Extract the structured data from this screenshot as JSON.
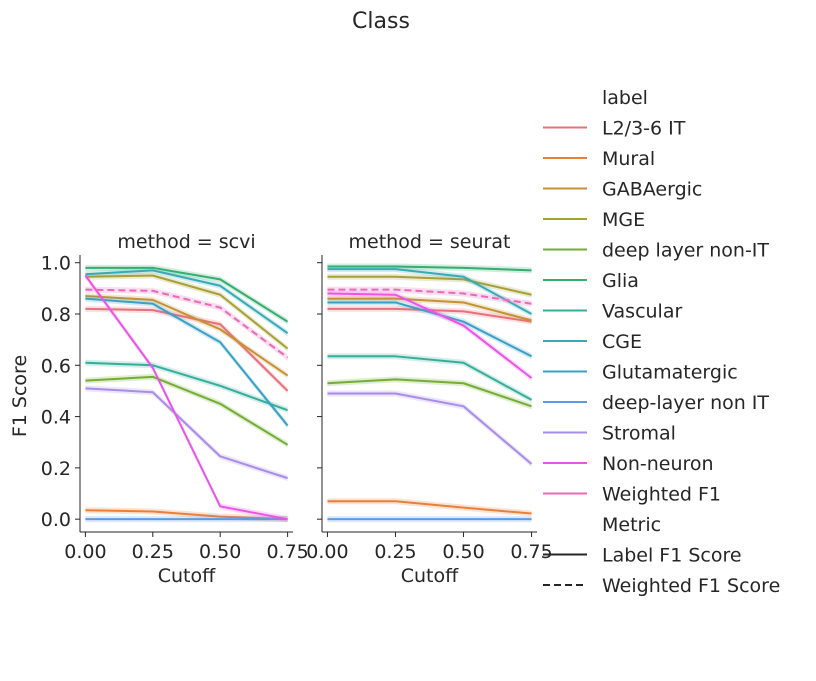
{
  "chart_data": {
    "type": "line",
    "title": "Class",
    "xlabel": "Cutoff",
    "ylabel": "F1 Score",
    "x": [
      0.0,
      0.25,
      0.5,
      0.75
    ],
    "xticks": [
      "0.00",
      "0.25",
      "0.50",
      "0.75"
    ],
    "yticks": [
      "0.0",
      "0.2",
      "0.4",
      "0.6",
      "0.8",
      "1.0"
    ],
    "xlim": [
      -0.02,
      0.77
    ],
    "ylim": [
      -0.05,
      1.03
    ],
    "panels": [
      {
        "title": "method = scvi",
        "series": [
          {
            "name": "L2/3-6 IT",
            "color": "#e8707a",
            "style": "solid",
            "values": [
              0.82,
              0.815,
              0.76,
              0.5
            ]
          },
          {
            "name": "Mural",
            "color": "#ea7f3a",
            "style": "solid",
            "values": [
              0.035,
              0.03,
              0.01,
              0.0
            ]
          },
          {
            "name": "GABAergic",
            "color": "#c69035",
            "style": "solid",
            "values": [
              0.87,
              0.855,
              0.74,
              0.56
            ]
          },
          {
            "name": "MGE",
            "color": "#a6a035",
            "style": "solid",
            "values": [
              0.945,
              0.95,
              0.875,
              0.665
            ]
          },
          {
            "name": "deep layer non-IT",
            "color": "#74ad33",
            "style": "solid",
            "values": [
              0.54,
              0.555,
              0.45,
              0.29
            ]
          },
          {
            "name": "Glia",
            "color": "#34ad6d",
            "style": "solid",
            "values": [
              0.98,
              0.98,
              0.935,
              0.77
            ]
          },
          {
            "name": "Vascular",
            "color": "#36ad9b",
            "style": "solid",
            "values": [
              0.61,
              0.6,
              0.52,
              0.425
            ]
          },
          {
            "name": "CGE",
            "color": "#37aab3",
            "style": "solid",
            "values": [
              0.955,
              0.97,
              0.91,
              0.725
            ]
          },
          {
            "name": "Glutamatergic",
            "color": "#39a1c4",
            "style": "solid",
            "values": [
              0.86,
              0.84,
              0.69,
              0.365
            ]
          },
          {
            "name": "deep-layer non IT",
            "color": "#5b9be8",
            "style": "solid",
            "values": [
              0.0,
              0.0,
              0.0,
              0.0
            ]
          },
          {
            "name": "Stromal",
            "color": "#a98ce8",
            "style": "solid",
            "values": [
              0.51,
              0.495,
              0.245,
              0.16
            ]
          },
          {
            "name": "Non-neuron",
            "color": "#ea55e8",
            "style": "solid",
            "values": [
              0.95,
              0.59,
              0.05,
              0.0
            ]
          },
          {
            "name": "Weighted F1",
            "color": "#ea6ab8",
            "style": "dashed",
            "values": [
              0.895,
              0.89,
              0.825,
              0.63
            ]
          }
        ]
      },
      {
        "title": "method = seurat",
        "series": [
          {
            "name": "L2/3-6 IT",
            "color": "#e8707a",
            "style": "solid",
            "values": [
              0.82,
              0.82,
              0.81,
              0.77
            ]
          },
          {
            "name": "Mural",
            "color": "#ea7f3a",
            "style": "solid",
            "values": [
              0.07,
              0.07,
              0.045,
              0.022
            ]
          },
          {
            "name": "GABAergic",
            "color": "#c69035",
            "style": "solid",
            "values": [
              0.86,
              0.86,
              0.845,
              0.775
            ]
          },
          {
            "name": "MGE",
            "color": "#a6a035",
            "style": "solid",
            "values": [
              0.945,
              0.945,
              0.935,
              0.875
            ]
          },
          {
            "name": "deep layer non-IT",
            "color": "#74ad33",
            "style": "solid",
            "values": [
              0.53,
              0.545,
              0.53,
              0.44
            ]
          },
          {
            "name": "Glia",
            "color": "#34ad6d",
            "style": "solid",
            "values": [
              0.985,
              0.985,
              0.98,
              0.97
            ]
          },
          {
            "name": "Vascular",
            "color": "#36ad9b",
            "style": "solid",
            "values": [
              0.635,
              0.635,
              0.61,
              0.465
            ]
          },
          {
            "name": "CGE",
            "color": "#37aab3",
            "style": "solid",
            "values": [
              0.975,
              0.975,
              0.945,
              0.8
            ]
          },
          {
            "name": "Glutamatergic",
            "color": "#39a1c4",
            "style": "solid",
            "values": [
              0.845,
              0.845,
              0.77,
              0.635
            ]
          },
          {
            "name": "deep-layer non IT",
            "color": "#5b9be8",
            "style": "solid",
            "values": [
              0.0,
              0.0,
              0.0,
              0.0
            ]
          },
          {
            "name": "Stromal",
            "color": "#a98ce8",
            "style": "solid",
            "values": [
              0.49,
              0.49,
              0.44,
              0.215
            ]
          },
          {
            "name": "Non-neuron",
            "color": "#ea55e8",
            "style": "solid",
            "values": [
              0.88,
              0.875,
              0.755,
              0.55
            ]
          },
          {
            "name": "Weighted F1",
            "color": "#ea6ab8",
            "style": "dashed",
            "values": [
              0.895,
              0.895,
              0.88,
              0.84
            ]
          }
        ]
      }
    ],
    "legend": {
      "placement": "right",
      "label_title": "label",
      "metric_title": "Metric",
      "labels": [
        {
          "name": "L2/3-6 IT",
          "color": "#e8707a"
        },
        {
          "name": "Mural",
          "color": "#ea7f3a"
        },
        {
          "name": "GABAergic",
          "color": "#c69035"
        },
        {
          "name": "MGE",
          "color": "#a6a035"
        },
        {
          "name": "deep layer non-IT",
          "color": "#74ad33"
        },
        {
          "name": "Glia",
          "color": "#34ad6d"
        },
        {
          "name": "Vascular",
          "color": "#36ad9b"
        },
        {
          "name": "CGE",
          "color": "#37aab3"
        },
        {
          "name": "Glutamatergic",
          "color": "#39a1c4"
        },
        {
          "name": "deep-layer non IT",
          "color": "#5b9be8"
        },
        {
          "name": "Stromal",
          "color": "#a98ce8"
        },
        {
          "name": "Non-neuron",
          "color": "#ea55e8"
        },
        {
          "name": "Weighted F1",
          "color": "#ea6ab8"
        }
      ],
      "metrics": [
        {
          "name": "Label F1 Score",
          "style": "solid"
        },
        {
          "name": "Weighted F1 Score",
          "style": "dashed"
        }
      ]
    },
    "grid": false
  }
}
